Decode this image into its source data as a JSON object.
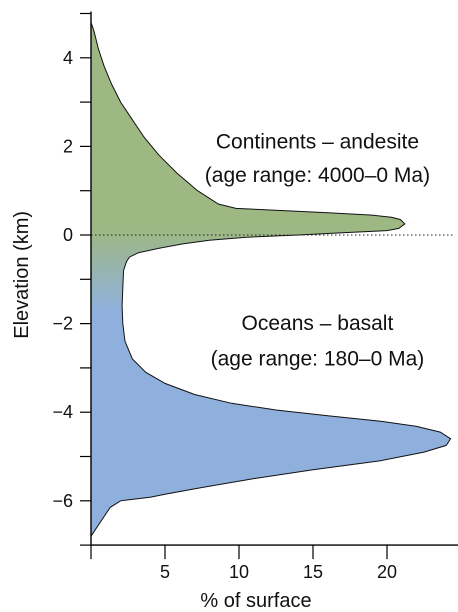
{
  "chart_data": {
    "type": "area",
    "orientation": "horizontal",
    "xlabel": "% of surface",
    "ylabel": "Elevation (km)",
    "xlim": [
      0,
      25
    ],
    "ylim": [
      -7,
      5
    ],
    "x_ticks": [
      5,
      10,
      15,
      20
    ],
    "y_ticks": [
      -6,
      -4,
      -2,
      0,
      2,
      4
    ],
    "x_minor_ticks": [
      0,
      25
    ],
    "y_minor_ticks": [
      -7,
      -5,
      -3,
      -1,
      1,
      3,
      5
    ],
    "reference_line": {
      "y": 0,
      "style": "dotted"
    },
    "colors": {
      "continent": "#9eb884",
      "ocean": "#8fb0dc",
      "outline": "#111111"
    },
    "annotations": [
      {
        "text": "Continents – andesite",
        "x": 15.3,
        "y": 1.95
      },
      {
        "text": "(age range: 4000–0 Ma)",
        "x": 15.3,
        "y": 1.2
      },
      {
        "text": "Oceans – basalt",
        "x": 15.3,
        "y": -2.15
      },
      {
        "text": "(age range: 180–0 Ma)",
        "x": 15.3,
        "y": -2.95
      }
    ],
    "profile": [
      [
        0,
        4.8
      ],
      [
        0.2,
        4.6
      ],
      [
        0.5,
        4.2
      ],
      [
        0.9,
        3.8
      ],
      [
        1.4,
        3.4
      ],
      [
        2.0,
        3.0
      ],
      [
        2.8,
        2.6
      ],
      [
        3.6,
        2.2
      ],
      [
        4.6,
        1.8
      ],
      [
        5.8,
        1.4
      ],
      [
        7.2,
        1.0
      ],
      [
        8.6,
        0.7
      ],
      [
        9.8,
        0.6
      ],
      [
        13,
        0.55
      ],
      [
        16,
        0.5
      ],
      [
        19,
        0.45
      ],
      [
        20.3,
        0.4
      ],
      [
        20.9,
        0.35
      ],
      [
        21.2,
        0.25
      ],
      [
        20.8,
        0.15
      ],
      [
        20.0,
        0.1
      ],
      [
        17,
        0.05
      ],
      [
        14,
        0.0
      ],
      [
        10.5,
        -0.05
      ],
      [
        8.0,
        -0.12
      ],
      [
        6.2,
        -0.2
      ],
      [
        4.6,
        -0.3
      ],
      [
        3.2,
        -0.4
      ],
      [
        2.6,
        -0.5
      ],
      [
        2.4,
        -0.6
      ],
      [
        2.2,
        -0.8
      ],
      [
        2.15,
        -1.2
      ],
      [
        2.1,
        -1.6
      ],
      [
        2.15,
        -2.0
      ],
      [
        2.3,
        -2.4
      ],
      [
        2.8,
        -2.8
      ],
      [
        3.7,
        -3.1
      ],
      [
        5.0,
        -3.35
      ],
      [
        7.0,
        -3.6
      ],
      [
        9.5,
        -3.8
      ],
      [
        12.5,
        -3.95
      ],
      [
        16,
        -4.08
      ],
      [
        19.5,
        -4.2
      ],
      [
        22,
        -4.32
      ],
      [
        23.6,
        -4.45
      ],
      [
        24.3,
        -4.6
      ],
      [
        24.0,
        -4.75
      ],
      [
        22.5,
        -4.9
      ],
      [
        19.5,
        -5.1
      ],
      [
        15,
        -5.3
      ],
      [
        11,
        -5.5
      ],
      [
        7.5,
        -5.7
      ],
      [
        5.0,
        -5.85
      ],
      [
        4.0,
        -5.92
      ],
      [
        3.0,
        -5.96
      ],
      [
        2.0,
        -6.0
      ],
      [
        1.3,
        -6.15
      ],
      [
        0.8,
        -6.4
      ],
      [
        0.4,
        -6.6
      ],
      [
        0,
        -6.8
      ]
    ]
  }
}
